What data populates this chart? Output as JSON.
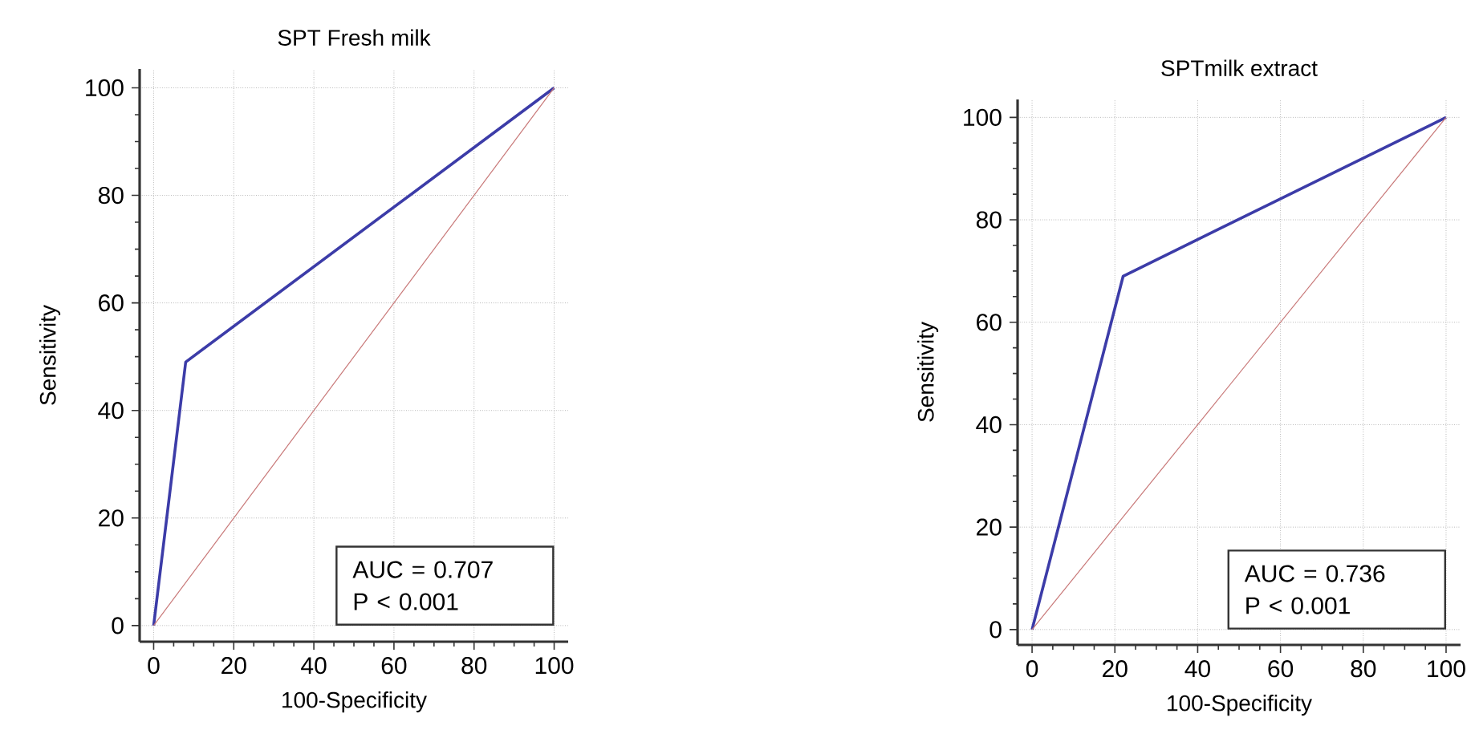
{
  "chart_data": [
    {
      "type": "line",
      "title": "SPT Fresh milk",
      "xlabel": "100-Specificity",
      "ylabel": "Sensitivity",
      "xlim": [
        -3.5,
        103.5
      ],
      "ylim": [
        -3,
        103.5
      ],
      "xticks": [
        0,
        20,
        40,
        60,
        80,
        100
      ],
      "yticks": [
        0,
        20,
        40,
        60,
        80,
        100
      ],
      "grid": true,
      "annotations": [
        "AUC = 0.707",
        "P < 0.001"
      ],
      "series": [
        {
          "x": [
            0,
            8,
            100
          ],
          "values": [
            0,
            49,
            100
          ],
          "color": "#3c3ca8"
        },
        {
          "x": [
            0,
            100
          ],
          "values": [
            0,
            100
          ],
          "color": "#c87878"
        }
      ]
    },
    {
      "type": "line",
      "title": "SPTmilk extract",
      "xlabel": "100-Specificity",
      "ylabel": "Sensitivity",
      "xlim": [
        -3.5,
        103.5
      ],
      "ylim": [
        -3,
        103.5
      ],
      "xticks": [
        0,
        20,
        40,
        60,
        80,
        100
      ],
      "yticks": [
        0,
        20,
        40,
        60,
        80,
        100
      ],
      "grid": true,
      "annotations": [
        "AUC = 0.736",
        "P < 0.001"
      ],
      "series": [
        {
          "x": [
            0,
            22,
            100
          ],
          "values": [
            0,
            69,
            100
          ],
          "color": "#3c3ca8"
        },
        {
          "x": [
            0,
            100
          ],
          "values": [
            0,
            100
          ],
          "color": "#c87878"
        }
      ]
    }
  ]
}
